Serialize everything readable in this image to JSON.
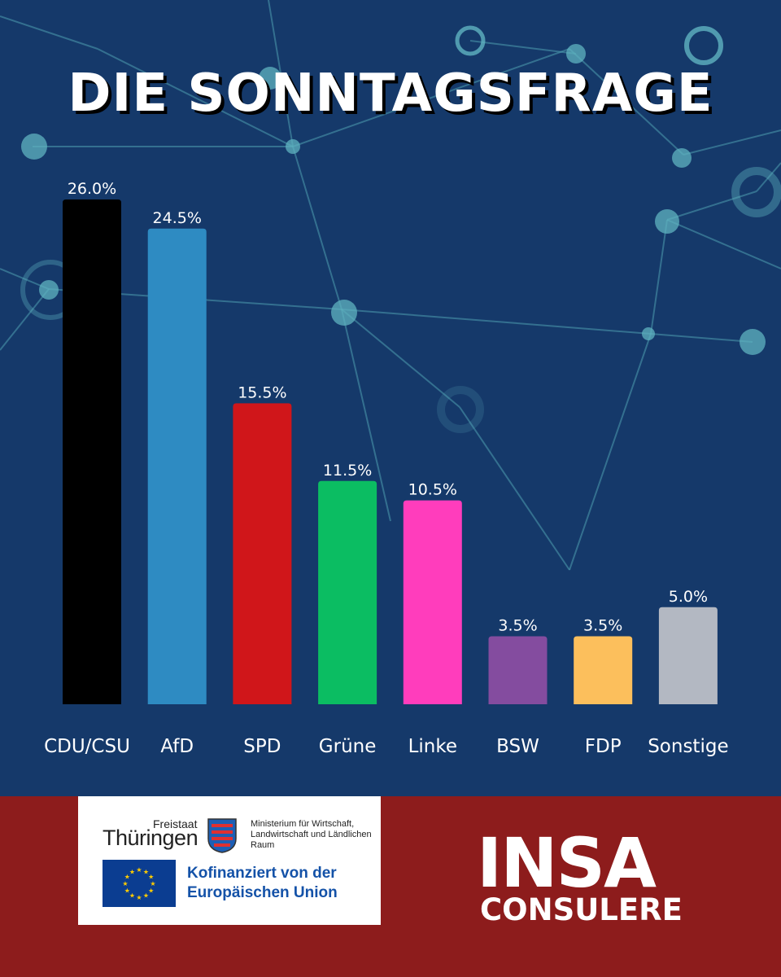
{
  "title": "DIE SONNTAGSFRAGE",
  "chart_data": {
    "type": "bar",
    "title": "DIE SONNTAGSFRAGE",
    "categories": [
      "CDU/CSU",
      "AfD",
      "SPD",
      "Grüne",
      "Linke",
      "BSW",
      "FDP",
      "Sonstige"
    ],
    "values": [
      26.0,
      24.5,
      15.5,
      11.5,
      10.5,
      3.5,
      3.5,
      5.0
    ],
    "value_labels": [
      "26.0%",
      "24.5%",
      "15.5%",
      "11.5%",
      "10.5%",
      "3.5%",
      "3.5%",
      "5.0%"
    ],
    "colors": [
      "#000000",
      "#2e8bc2",
      "#d0161a",
      "#0bbd62",
      "#ff3dbc",
      "#844c9f",
      "#fcbf5c",
      "#b3b8c2"
    ],
    "xlabel": "",
    "ylabel": "",
    "ylim": [
      0,
      26
    ],
    "grid": false,
    "legend": "none"
  },
  "footer": {
    "freistaat": "Freistaat",
    "thueringen": "Thüringen",
    "ministry": "Ministerium für Wirtschaft, Landwirtschaft und Ländlichen Raum",
    "cofunded_line1": "Kofinanziert von der",
    "cofunded_line2": "Europäischen Union",
    "insa": "INSA",
    "consulere": "CONSULERE"
  },
  "colors": {
    "background": "#15396a",
    "footer": "#8d1c1c",
    "network": "#5fb3c0"
  }
}
